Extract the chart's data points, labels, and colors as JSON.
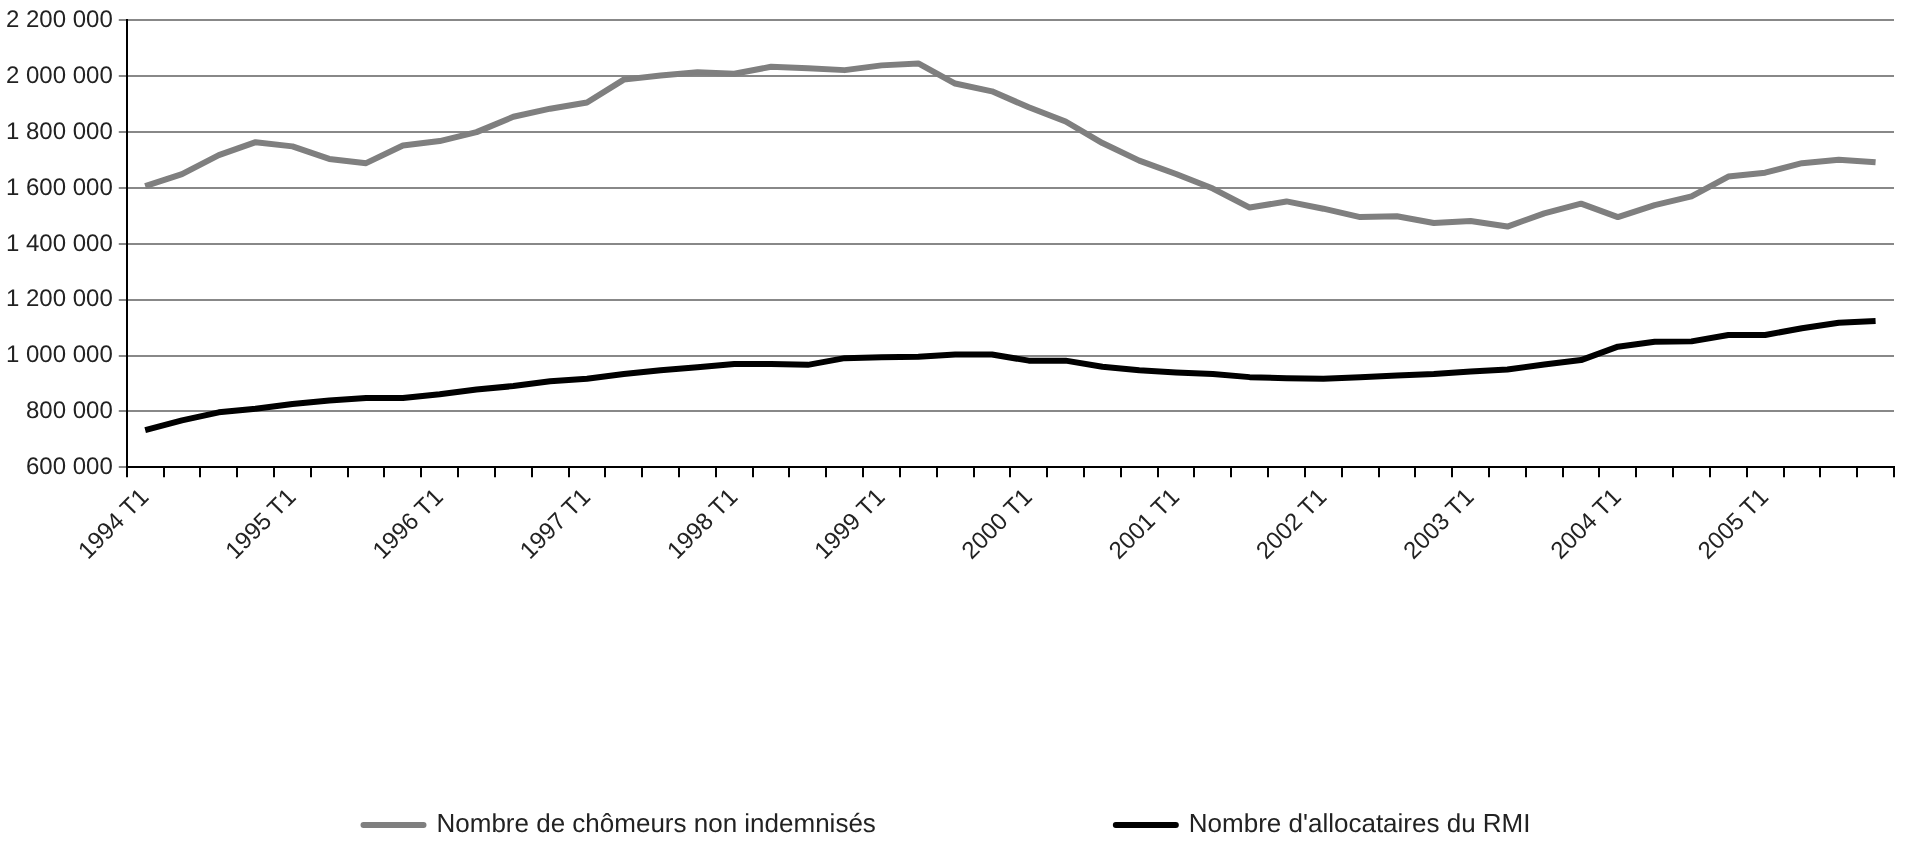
{
  "chart_data": {
    "type": "line",
    "categories": [
      "1994 T1",
      null,
      null,
      null,
      "1995 T1",
      null,
      null,
      null,
      "1996 T1",
      null,
      null,
      null,
      "1997 T1",
      null,
      null,
      null,
      "1998 T1",
      null,
      null,
      null,
      "1999 T1",
      null,
      null,
      null,
      "2000 T1",
      null,
      null,
      null,
      "2001 T1",
      null,
      null,
      null,
      "2002 T1",
      null,
      null,
      null,
      "2003 T1",
      null,
      null,
      null,
      "2004 T1",
      null,
      null,
      null,
      "2005 T1",
      null,
      null,
      null
    ],
    "series": [
      {
        "name": "Nombre de chômeurs non indemnisés",
        "color": "#7f7f7f",
        "values": [
          1607000,
          1650000,
          1718000,
          1764000,
          1749000,
          1704000,
          1689000,
          1752000,
          1768000,
          1800000,
          1855000,
          1884000,
          1906000,
          1988000,
          2003000,
          2014000,
          2009000,
          2034000,
          2029000,
          2022000,
          2039000,
          2046000,
          1974000,
          1946000,
          1889000,
          1838000,
          1761000,
          1698000,
          1650000,
          1598000,
          1530000,
          1552000,
          1526000,
          1496000,
          1499000,
          1475000,
          1482000,
          1462000,
          1509000,
          1544000,
          1496000,
          1539000,
          1570000,
          1641000,
          1655000,
          1689000,
          1701000,
          1692000
        ]
      },
      {
        "name": "Nombre d'allocataires du RMI",
        "color": "#000000",
        "values": [
          733000,
          768000,
          797000,
          810000,
          827000,
          839000,
          848000,
          848000,
          862000,
          879000,
          891000,
          908000,
          917000,
          934000,
          948000,
          958000,
          970000,
          970000,
          967000,
          991000,
          994000,
          996000,
          1004000,
          1004000,
          982000,
          982000,
          960000,
          948000,
          940000,
          934000,
          923000,
          919000,
          917000,
          923000,
          929000,
          934000,
          943000,
          950000,
          968000,
          984000,
          1032000,
          1050000,
          1051000,
          1074000,
          1074000,
          1098000,
          1118000,
          1124000
        ]
      }
    ],
    "ylim": [
      600000,
      2200000
    ],
    "yticks": [
      {
        "value": 600000,
        "label": "600 000"
      },
      {
        "value": 800000,
        "label": "800 000"
      },
      {
        "value": 1000000,
        "label": "1 000 000"
      },
      {
        "value": 1200000,
        "label": "1 200 000"
      },
      {
        "value": 1400000,
        "label": "1 400 000"
      },
      {
        "value": 1600000,
        "label": "1 600 000"
      },
      {
        "value": 1800000,
        "label": "1 800 000"
      },
      {
        "value": 2000000,
        "label": "2 000 000"
      },
      {
        "value": 2200000,
        "label": "2 200 000"
      }
    ],
    "grid": "y",
    "legend": "bottom",
    "marker": "none",
    "line_style": "solid"
  }
}
